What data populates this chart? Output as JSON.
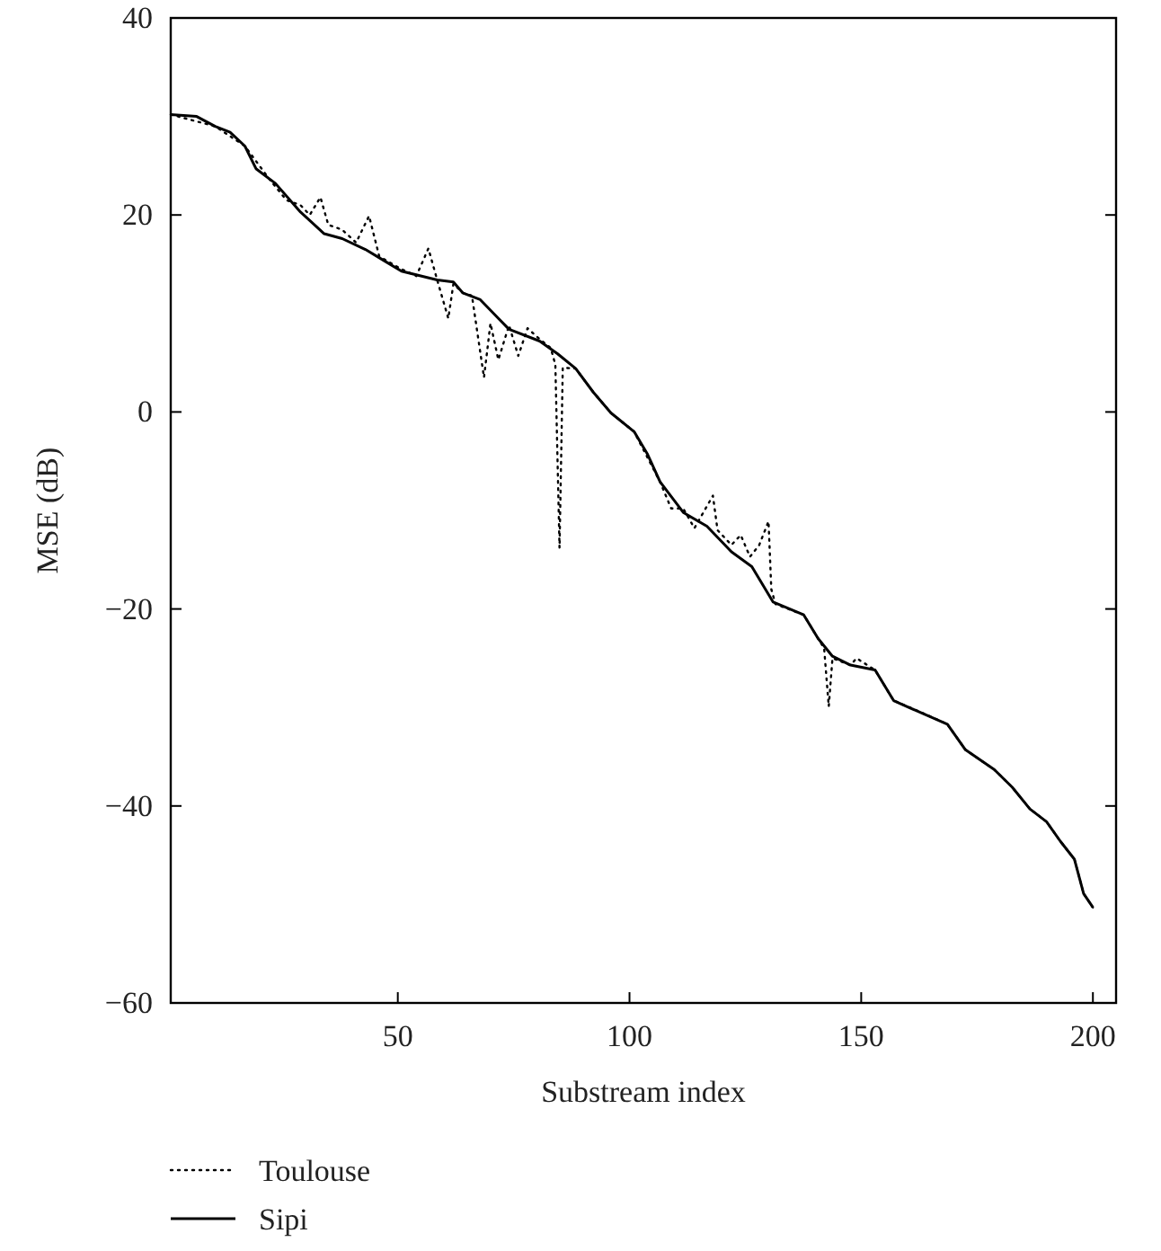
{
  "chart_data": {
    "type": "line",
    "xlabel": "Substream index",
    "ylabel": "MSE (dB)",
    "xlim": [
      1,
      205
    ],
    "xticks": [
      50,
      100,
      150,
      200
    ],
    "ylim": [
      -60,
      40
    ],
    "yticks": [
      -60,
      -40,
      -20,
      0,
      20,
      40
    ],
    "grid": false,
    "legend": "bottom left",
    "marker": "none",
    "series": [
      {
        "name": "Toulouse",
        "color": "#000000",
        "line_style": "dotted",
        "x": [
          1,
          10.6,
          17,
          22.5,
          26,
          29,
          31,
          33.3,
          35,
          38,
          41,
          43.8,
          46,
          50.8,
          54,
          56.6,
          58.5,
          60.9,
          62,
          64,
          66,
          68.6,
          70,
          71.7,
          74,
          76,
          78,
          80.6,
          83,
          84,
          84.9,
          85.6,
          88.4,
          92.2,
          96,
          101,
          106.6,
          109,
          111.6,
          114,
          118,
          119,
          122,
          124,
          126,
          128,
          130,
          130.6,
          131.5,
          137.6,
          140.7,
          142,
          143,
          143.8,
          147.7,
          149,
          153,
          157,
          162,
          168.6,
          172.5,
          178.7,
          182.6,
          186.4,
          190,
          193,
          196,
          198,
          200
        ],
        "values": [
          30.2,
          29.0,
          27,
          23.5,
          21.5,
          21,
          20,
          21.8,
          19,
          18.5,
          17.2,
          19.9,
          15.8,
          14.5,
          13.8,
          16.6,
          13.4,
          9.5,
          13.0,
          12.1,
          11.8,
          3.5,
          9,
          5.3,
          8.8,
          5.7,
          8.5,
          7.4,
          6.5,
          4.8,
          -13.8,
          4.5,
          4.4,
          2,
          -0.1,
          -2,
          -7.1,
          -9.8,
          -9.8,
          -11.8,
          -8.5,
          -12,
          -13.5,
          -12.5,
          -14.7,
          -13.5,
          -11.1,
          -18,
          -19.5,
          -20.6,
          -23,
          -24,
          -29.9,
          -25,
          -25.7,
          -25,
          -26.2,
          -29.3,
          -30.3,
          -31.7,
          -34.3,
          -36.3,
          -38.1,
          -40.3,
          -41.6,
          -43.6,
          -45.4,
          -48.9,
          -50.3
        ]
      },
      {
        "name": "Sipi",
        "color": "#000000",
        "line_style": "solid",
        "x": [
          1,
          6.6,
          10.6,
          13.8,
          17,
          19.4,
          23.6,
          29,
          34.1,
          38,
          43,
          46.9,
          50.8,
          58.5,
          62,
          64,
          67.8,
          71.7,
          74,
          80.6,
          84.5,
          88.4,
          92.2,
          96,
          101,
          103.9,
          106.6,
          111.6,
          116.7,
          122,
          126.4,
          131,
          137.6,
          140.7,
          143.8,
          147.7,
          153,
          157,
          160.8,
          168.6,
          172.5,
          178.7,
          182.6,
          186.4,
          190,
          193,
          196,
          198,
          200
        ],
        "values": [
          30.2,
          30.0,
          29.0,
          28.4,
          27,
          24.7,
          23.2,
          20.3,
          18.1,
          17.6,
          16.5,
          15.4,
          14.3,
          13.4,
          13.2,
          12.1,
          11.4,
          9.5,
          8.4,
          7.2,
          5.9,
          4.4,
          2.0,
          -0.1,
          -2.0,
          -4.3,
          -7.1,
          -10.2,
          -11.6,
          -14.2,
          -15.7,
          -19.3,
          -20.6,
          -23,
          -24.8,
          -25.7,
          -26.2,
          -29.3,
          -30.1,
          -31.7,
          -34.3,
          -36.3,
          -38.1,
          -40.3,
          -41.6,
          -43.6,
          -45.4,
          -48.9,
          -50.3
        ]
      }
    ]
  }
}
